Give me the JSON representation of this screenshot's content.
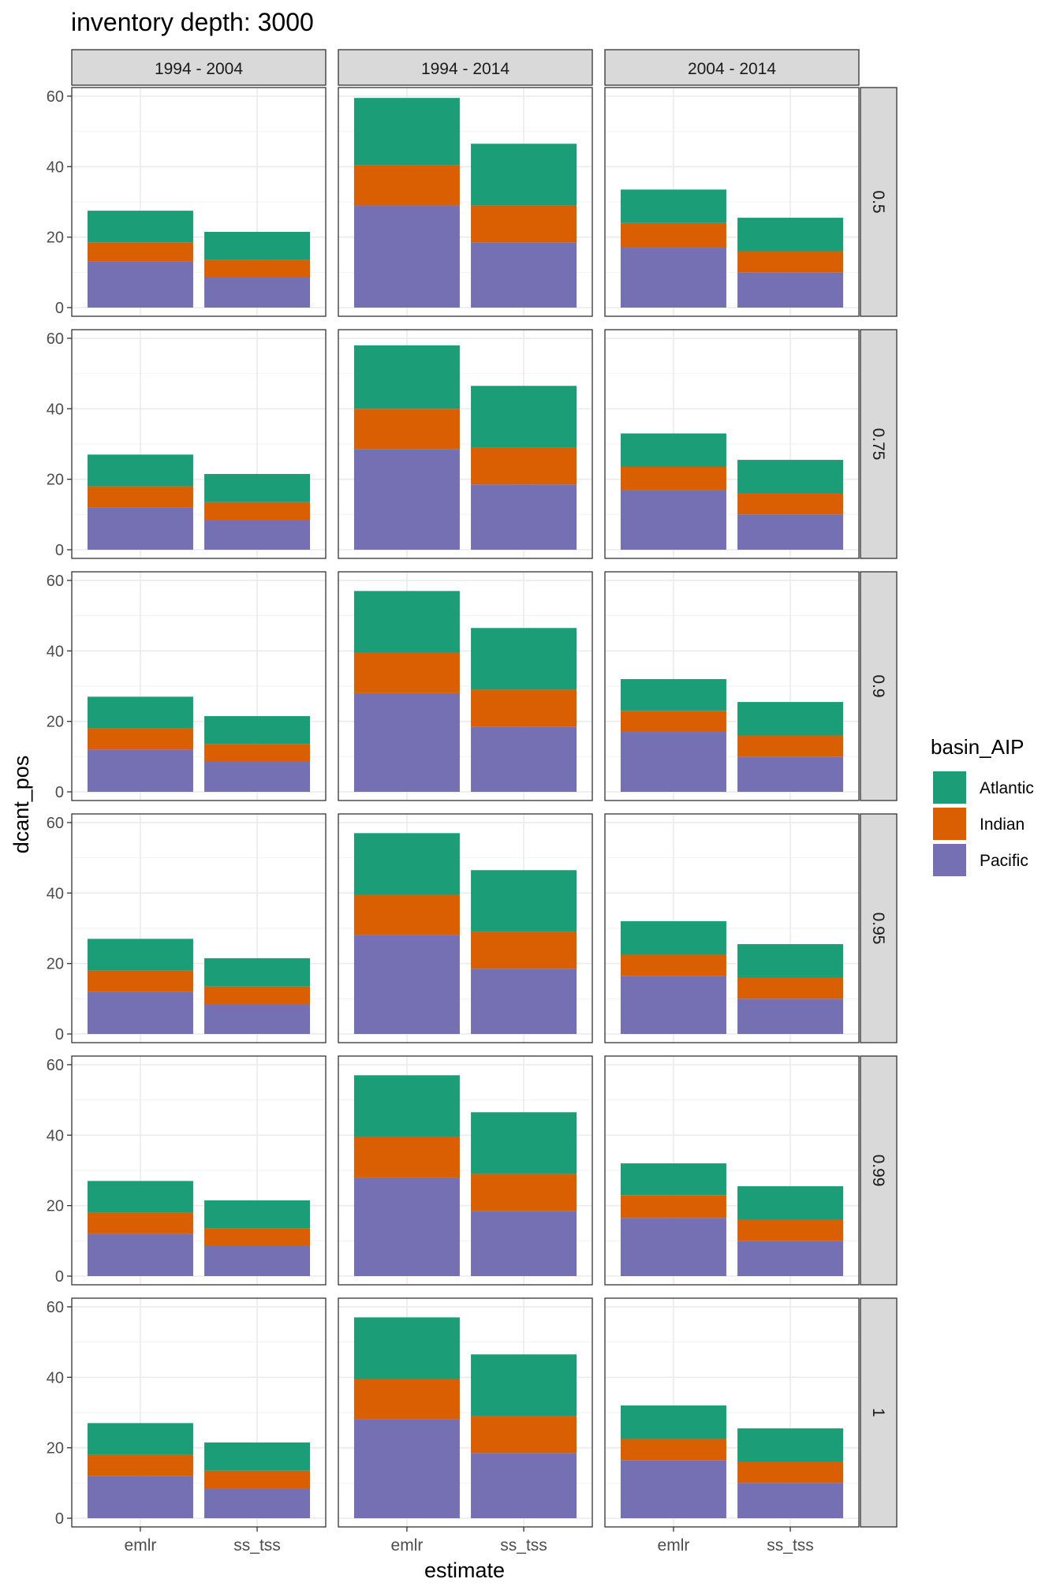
{
  "chart_data": {
    "type": "bar",
    "stacked": true,
    "title": "inventory depth: 3000",
    "xlabel": "estimate",
    "ylabel": "dcant_pos",
    "ylim": [
      0,
      62
    ],
    "yticks": [
      0,
      20,
      40,
      60
    ],
    "grid": true,
    "categories": [
      "emlr",
      "ss_tss"
    ],
    "col_facets": [
      "1994 - 2004",
      "1994 - 2014",
      "2004 - 2014"
    ],
    "row_facets": [
      "0.5",
      "0.75",
      "0.9",
      "0.95",
      "0.99",
      "1"
    ],
    "legend": {
      "title": "basin_AIP",
      "position": "right",
      "entries": [
        "Atlantic",
        "Indian",
        "Pacific"
      ]
    },
    "colors": {
      "Atlantic": "#1b9e77",
      "Indian": "#d95f02",
      "Pacific": "#7570b3"
    },
    "panels": [
      [
        {
          "emlr": {
            "Pacific": 13,
            "Indian": 5.5,
            "Atlantic": 9
          },
          "ss_tss": {
            "Pacific": 8.5,
            "Indian": 5,
            "Atlantic": 8
          }
        },
        {
          "emlr": {
            "Pacific": 29,
            "Indian": 11.5,
            "Atlantic": 19
          },
          "ss_tss": {
            "Pacific": 18.5,
            "Indian": 10.5,
            "Atlantic": 17.5
          }
        },
        {
          "emlr": {
            "Pacific": 17,
            "Indian": 7,
            "Atlantic": 9.5
          },
          "ss_tss": {
            "Pacific": 10,
            "Indian": 6,
            "Atlantic": 9.5
          }
        }
      ],
      [
        {
          "emlr": {
            "Pacific": 12,
            "Indian": 6,
            "Atlantic": 9
          },
          "ss_tss": {
            "Pacific": 8.5,
            "Indian": 5,
            "Atlantic": 8
          }
        },
        {
          "emlr": {
            "Pacific": 28.5,
            "Indian": 11.5,
            "Atlantic": 18
          },
          "ss_tss": {
            "Pacific": 18.5,
            "Indian": 10.5,
            "Atlantic": 17.5
          }
        },
        {
          "emlr": {
            "Pacific": 17,
            "Indian": 6.5,
            "Atlantic": 9.5
          },
          "ss_tss": {
            "Pacific": 10,
            "Indian": 6,
            "Atlantic": 9.5
          }
        }
      ],
      [
        {
          "emlr": {
            "Pacific": 12,
            "Indian": 6,
            "Atlantic": 9
          },
          "ss_tss": {
            "Pacific": 8.5,
            "Indian": 5,
            "Atlantic": 8
          }
        },
        {
          "emlr": {
            "Pacific": 28,
            "Indian": 11.5,
            "Atlantic": 17.5
          },
          "ss_tss": {
            "Pacific": 18.5,
            "Indian": 10.5,
            "Atlantic": 17.5
          }
        },
        {
          "emlr": {
            "Pacific": 17,
            "Indian": 6,
            "Atlantic": 9
          },
          "ss_tss": {
            "Pacific": 10,
            "Indian": 6,
            "Atlantic": 9.5
          }
        }
      ],
      [
        {
          "emlr": {
            "Pacific": 12,
            "Indian": 6,
            "Atlantic": 9
          },
          "ss_tss": {
            "Pacific": 8.5,
            "Indian": 5,
            "Atlantic": 8
          }
        },
        {
          "emlr": {
            "Pacific": 28,
            "Indian": 11.5,
            "Atlantic": 17.5
          },
          "ss_tss": {
            "Pacific": 18.5,
            "Indian": 10.5,
            "Atlantic": 17.5
          }
        },
        {
          "emlr": {
            "Pacific": 16.5,
            "Indian": 6,
            "Atlantic": 9.5
          },
          "ss_tss": {
            "Pacific": 10,
            "Indian": 6,
            "Atlantic": 9.5
          }
        }
      ],
      [
        {
          "emlr": {
            "Pacific": 12,
            "Indian": 6,
            "Atlantic": 9
          },
          "ss_tss": {
            "Pacific": 8.5,
            "Indian": 5,
            "Atlantic": 8
          }
        },
        {
          "emlr": {
            "Pacific": 28,
            "Indian": 11.5,
            "Atlantic": 17.5
          },
          "ss_tss": {
            "Pacific": 18.5,
            "Indian": 10.5,
            "Atlantic": 17.5
          }
        },
        {
          "emlr": {
            "Pacific": 16.5,
            "Indian": 6.5,
            "Atlantic": 9
          },
          "ss_tss": {
            "Pacific": 10,
            "Indian": 6,
            "Atlantic": 9.5
          }
        }
      ],
      [
        {
          "emlr": {
            "Pacific": 12,
            "Indian": 6,
            "Atlantic": 9
          },
          "ss_tss": {
            "Pacific": 8.5,
            "Indian": 5,
            "Atlantic": 8
          }
        },
        {
          "emlr": {
            "Pacific": 28,
            "Indian": 11.5,
            "Atlantic": 17.5
          },
          "ss_tss": {
            "Pacific": 18.5,
            "Indian": 10.5,
            "Atlantic": 17.5
          }
        },
        {
          "emlr": {
            "Pacific": 16.5,
            "Indian": 6,
            "Atlantic": 9.5
          },
          "ss_tss": {
            "Pacific": 10,
            "Indian": 6,
            "Atlantic": 9.5
          }
        }
      ]
    ]
  }
}
